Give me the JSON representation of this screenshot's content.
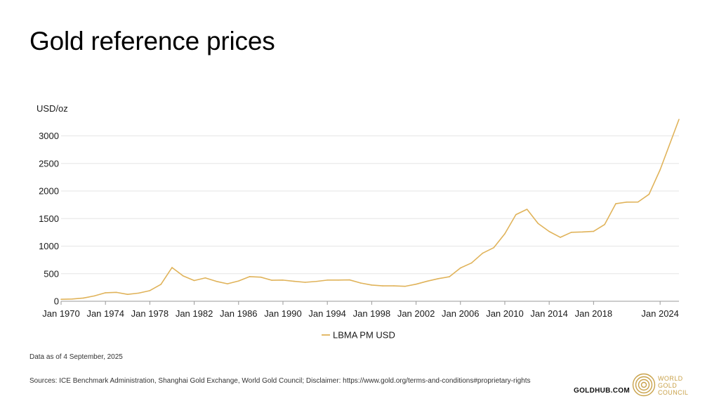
{
  "page": {
    "title": "Gold reference prices",
    "note": "Data as of 4 September, 2025",
    "sources": "Sources: ICE Benchmark Administration, Shanghai Gold Exchange, World Gold Council; Disclaimer: https://www.gold.org/terms-and-conditions#proprietary-rights",
    "goldhub": "GOLDHUB.COM",
    "brand_lines": [
      "WORLD",
      "GOLD",
      "COUNCIL"
    ]
  },
  "colors": {
    "line": "#e0b35a",
    "brand": "#c9a24a",
    "grid": "#e6e6e6"
  },
  "chart_data": {
    "type": "line",
    "title": "Gold reference prices",
    "ylabel": "USD/oz",
    "xlabel": "",
    "ylim": [
      0,
      3300
    ],
    "yticks": [
      0,
      500,
      1000,
      1500,
      2000,
      2500,
      3000
    ],
    "xlim": [
      1970,
      2025.7
    ],
    "xticks": [
      {
        "x": 1970,
        "label": "Jan 1970"
      },
      {
        "x": 1974,
        "label": "Jan 1974"
      },
      {
        "x": 1978,
        "label": "Jan 1978"
      },
      {
        "x": 1982,
        "label": "Jan 1982"
      },
      {
        "x": 1986,
        "label": "Jan 1986"
      },
      {
        "x": 1990,
        "label": "Jan 1990"
      },
      {
        "x": 1994,
        "label": "Jan 1994"
      },
      {
        "x": 1998,
        "label": "Jan 1998"
      },
      {
        "x": 2002,
        "label": "Jan 2002"
      },
      {
        "x": 2006,
        "label": "Jan 2006"
      },
      {
        "x": 2010,
        "label": "Jan 2010"
      },
      {
        "x": 2014,
        "label": "Jan 2014"
      },
      {
        "x": 2018,
        "label": "Jan 2018"
      },
      {
        "x": 2024,
        "label": "Jan 2024"
      }
    ],
    "grid": true,
    "legend": "bottom-center",
    "series": [
      {
        "name": "LBMA PM USD",
        "x": [
          1970,
          1971,
          1972,
          1973,
          1974,
          1975,
          1976,
          1977,
          1978,
          1979,
          1980,
          1981,
          1982,
          1983,
          1984,
          1985,
          1986,
          1987,
          1988,
          1989,
          1990,
          1991,
          1992,
          1993,
          1994,
          1995,
          1996,
          1997,
          1998,
          1999,
          2000,
          2001,
          2002,
          2003,
          2004,
          2005,
          2006,
          2007,
          2008,
          2009,
          2010,
          2011,
          2012,
          2013,
          2014,
          2015,
          2016,
          2017,
          2018,
          2019,
          2020,
          2021,
          2022,
          2023,
          2024,
          2025.7
        ],
        "values": [
          36,
          41,
          58,
          97,
          154,
          161,
          125,
          148,
          193,
          306,
          612,
          460,
          376,
          424,
          361,
          317,
          368,
          447,
          437,
          381,
          384,
          362,
          344,
          360,
          384,
          384,
          388,
          331,
          294,
          279,
          279,
          271,
          310,
          364,
          410,
          445,
          604,
          695,
          872,
          972,
          1225,
          1572,
          1669,
          1411,
          1266,
          1160,
          1251,
          1257,
          1268,
          1393,
          1770,
          1799,
          1800,
          1941,
          2386,
          3300
        ]
      }
    ]
  }
}
